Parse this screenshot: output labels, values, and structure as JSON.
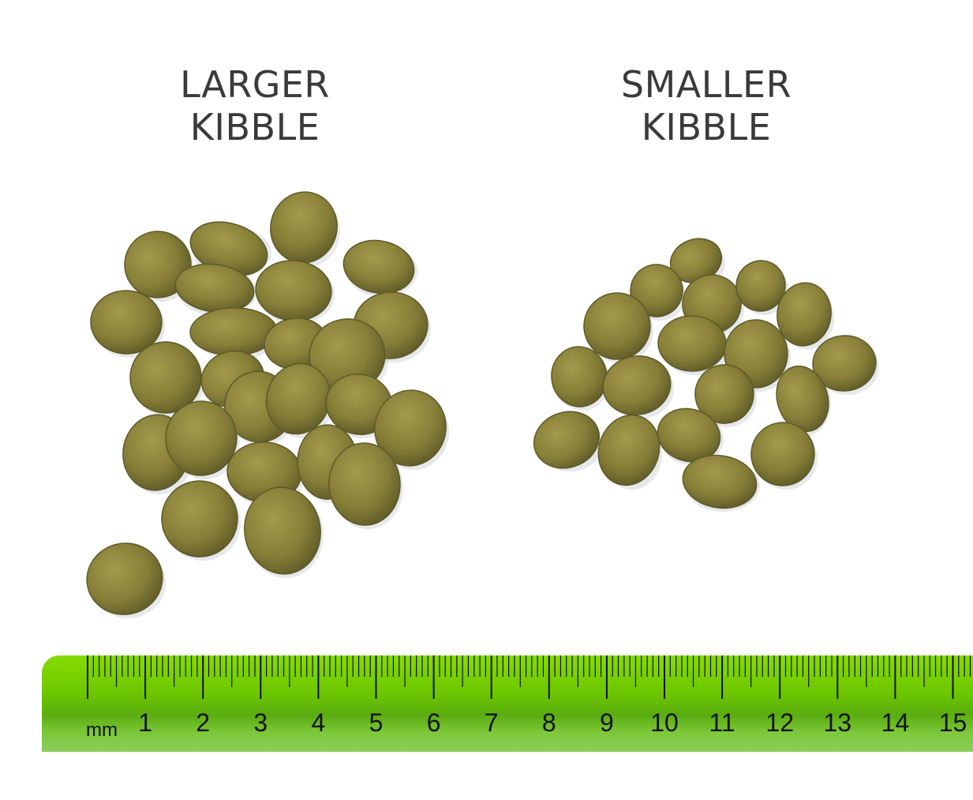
{
  "labels": {
    "left": [
      "LARGER",
      "KIBBLE"
    ],
    "right": [
      "SMALLER",
      "KIBBLE"
    ]
  },
  "ruler": {
    "unit_label": "mm",
    "numbers": [
      "1",
      "2",
      "3",
      "4",
      "5",
      "6",
      "7",
      "8",
      "9",
      "10",
      "11",
      "12",
      "13",
      "14",
      "15"
    ],
    "color": "#6cc600"
  },
  "colors": {
    "kibble": "#8a8238",
    "kibble_dark": "#5e5a28",
    "text": "#3a3a3a"
  }
}
